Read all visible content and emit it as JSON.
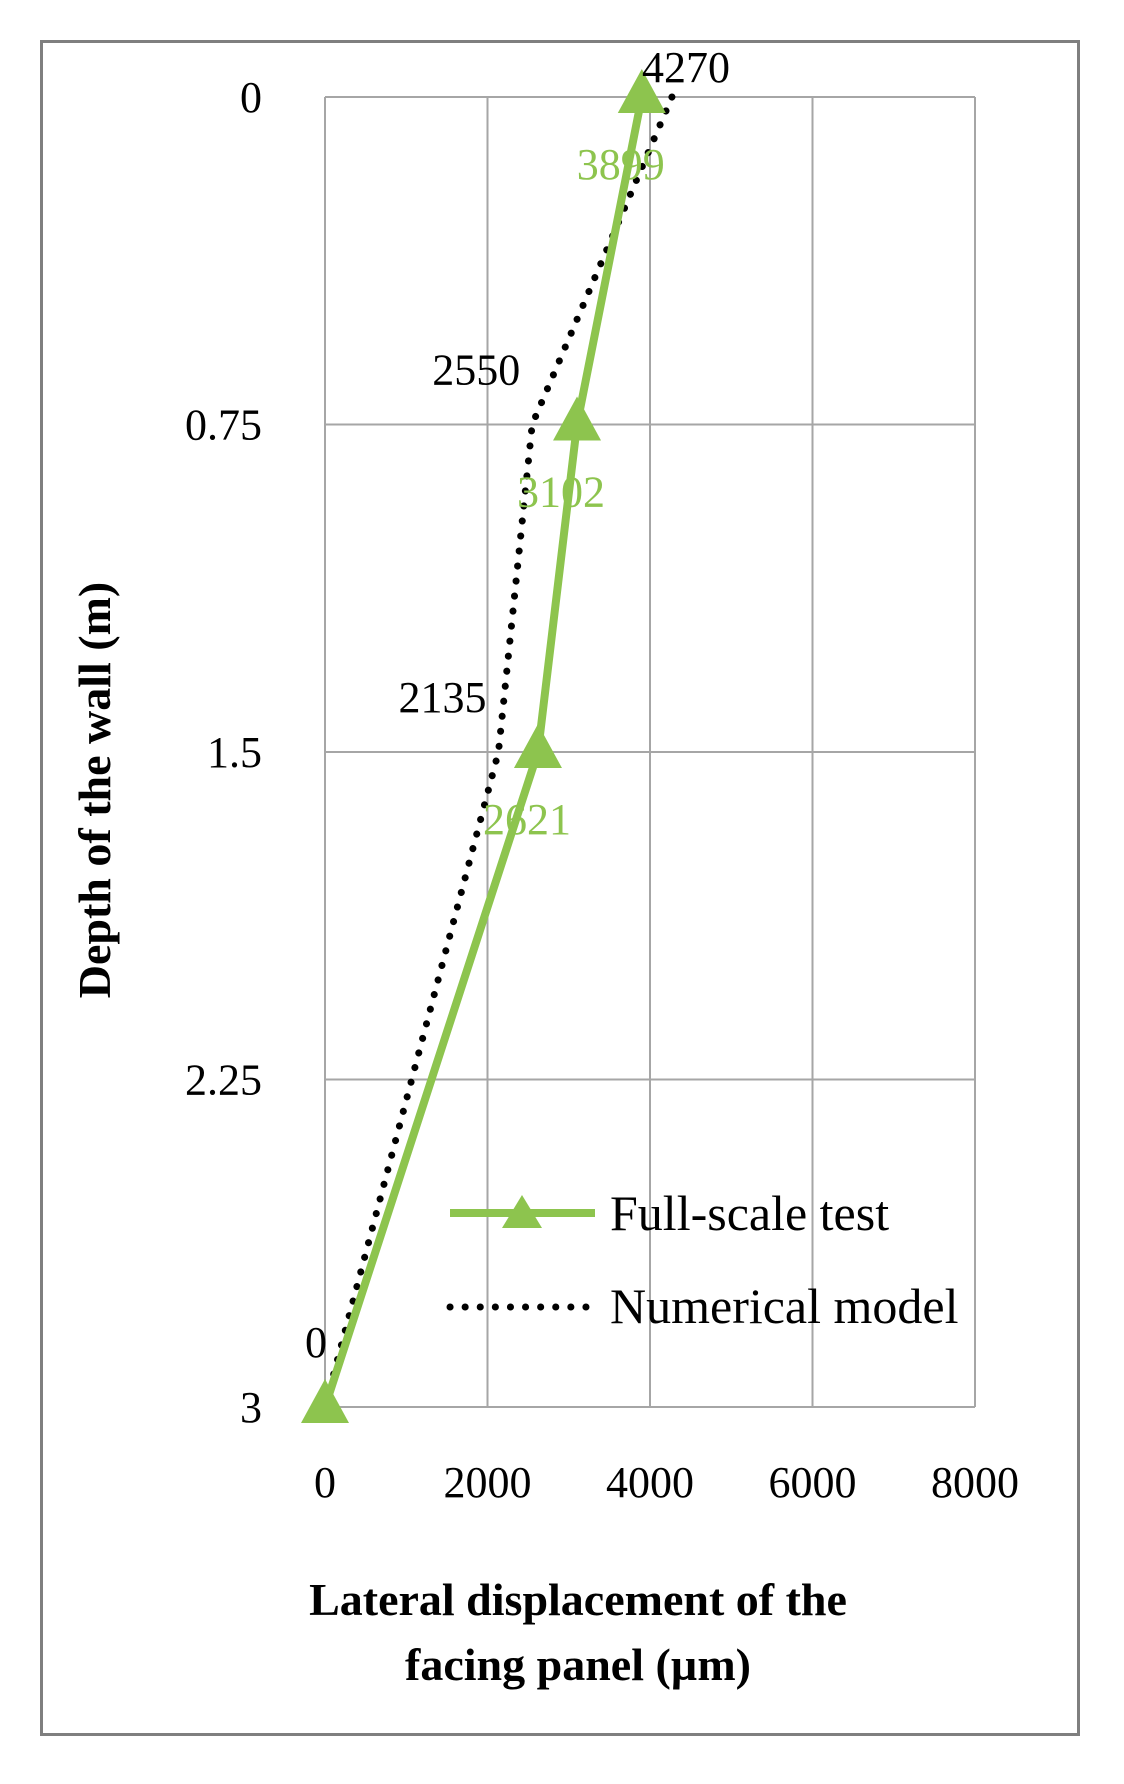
{
  "chart_data": {
    "type": "line",
    "orientation": "vertical-depth",
    "title": "",
    "xlabel_lines": [
      "Lateral displacement of the",
      "facing panel (µm)"
    ],
    "ylabel": "Depth of the wall (m)",
    "xlim": [
      0,
      8000
    ],
    "ylim": [
      0,
      3
    ],
    "y_inverted": true,
    "x_ticks": [
      "0",
      "2000",
      "4000",
      "6000",
      "8000"
    ],
    "x_tick_values": [
      0,
      2000,
      4000,
      6000,
      8000
    ],
    "y_ticks": [
      "0",
      "0.75",
      "1.5",
      "2.25",
      "3"
    ],
    "y_tick_values": [
      0,
      0.75,
      1.5,
      2.25,
      3
    ],
    "grid": true,
    "legend_position": "bottom-right",
    "series": [
      {
        "name": "Full-scale test",
        "color": "#8dc44e",
        "style": "solid",
        "marker": "triangle",
        "points": [
          {
            "x": 3899,
            "y": 0,
            "label": "3899"
          },
          {
            "x": 3102,
            "y": 0.75,
            "label": "3102"
          },
          {
            "x": 2621,
            "y": 1.5,
            "label": "2621"
          },
          {
            "x": 0,
            "y": 3,
            "label": "0"
          }
        ]
      },
      {
        "name": "Numerical model",
        "color": "#000000",
        "style": "dotted",
        "marker": "none",
        "points": [
          {
            "x": 4270,
            "y": 0,
            "label": "4270"
          },
          {
            "x": 2550,
            "y": 0.75,
            "label": "2550"
          },
          {
            "x": 2135,
            "y": 1.5,
            "label": "2135"
          },
          {
            "x": 0,
            "y": 3,
            "label": "0"
          }
        ]
      }
    ]
  }
}
